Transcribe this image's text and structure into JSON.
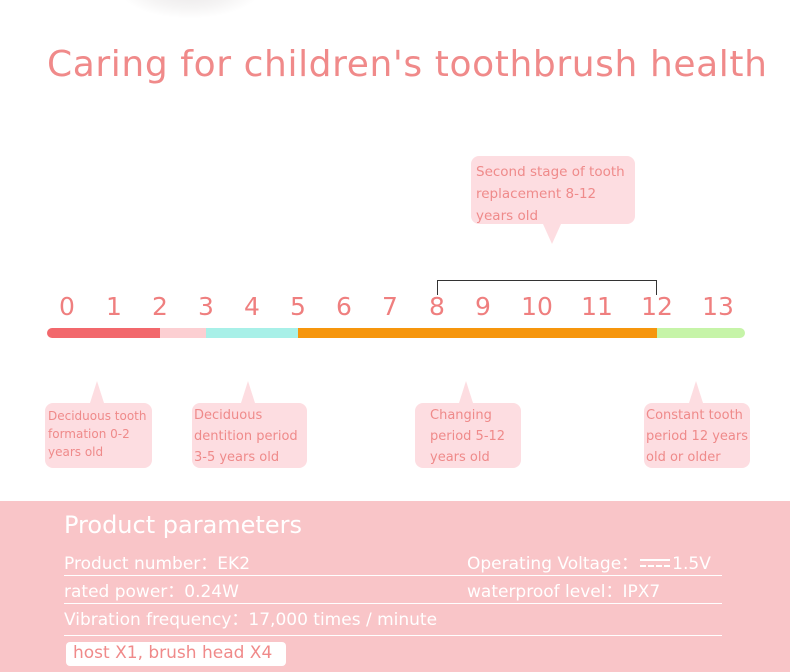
{
  "title": "Caring for children's toothbrush health",
  "callouts": {
    "top": "Second stage of tooth\nreplacement 8-12\nyears old",
    "c1": "Deciduous tooth\nformation 0-2\nyears old",
    "c2": "Deciduous\ndentition period\n3-5 years old",
    "c3": "Changing\nperiod 5-12\nyears old",
    "c4": "Constant tooth\nperiod 12 years\nold or older"
  },
  "timeline": {
    "ticks": [
      "0",
      "1",
      "2",
      "3",
      "4",
      "5",
      "6",
      "7",
      "8",
      "9",
      "10",
      "11",
      "12",
      "13"
    ],
    "segments": [
      {
        "from": 0,
        "to": 2,
        "color": "#f2686c"
      },
      {
        "from": 2,
        "to": 3,
        "color": "#fccfd2"
      },
      {
        "from": 3,
        "to": 5,
        "color": "#a8f0e8"
      },
      {
        "from": 5,
        "to": 12,
        "color": "#f6960d"
      },
      {
        "from": 12,
        "to": 13.7,
        "color": "#c6f4a8"
      }
    ]
  },
  "params": {
    "title": "Product parameters",
    "product_number": "Product number：EK2",
    "operating_voltage_label": "Operating Voltage：",
    "operating_voltage_value": "1.5V",
    "rated_power": "rated power：0.24W",
    "waterproof": "waterproof level：IPX7",
    "vibration": "Vibration frequency：17,000 times / minute",
    "includes": "host X1, brush head X4"
  },
  "colors": {
    "accent": "#f08a8a",
    "callout_bg": "#fddde1",
    "params_bg": "#f9c5c8"
  }
}
